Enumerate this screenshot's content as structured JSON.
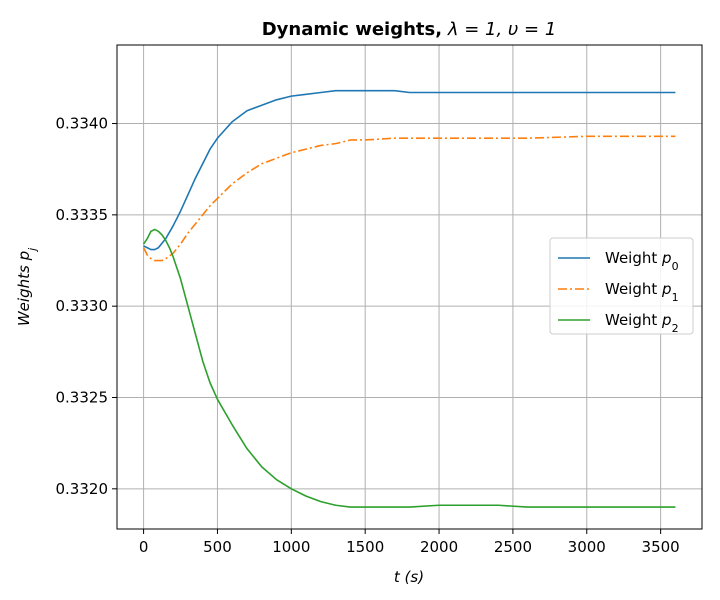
{
  "chart_data": {
    "type": "line",
    "title_bold": "Dynamic weights,",
    "title_math": " λ = 1, υ = 1",
    "xlabel": "t (s)",
    "ylabel": "Weights p",
    "ylabel_sub": "j",
    "xlim": [
      -180,
      3780
    ],
    "ylim": [
      0.33178,
      0.33443
    ],
    "xticks": [
      0,
      500,
      1000,
      1500,
      2000,
      2500,
      3000,
      3500
    ],
    "xtick_labels": [
      "0",
      "500",
      "1000",
      "1500",
      "2000",
      "2500",
      "3000",
      "3500"
    ],
    "yticks": [
      0.332,
      0.3325,
      0.333,
      0.3335,
      0.334
    ],
    "ytick_labels": [
      "0.3320",
      "0.3325",
      "0.3330",
      "0.3335",
      "0.3340"
    ],
    "grid": true,
    "legend_position": "center-right",
    "series": [
      {
        "name": "Weight p",
        "name_sub": "0",
        "color": "#1f77b4",
        "dash": "solid",
        "x": [
          0,
          25,
          50,
          75,
          100,
          150,
          200,
          250,
          300,
          350,
          400,
          450,
          500,
          600,
          700,
          800,
          900,
          1000,
          1100,
          1200,
          1300,
          1400,
          1500,
          1600,
          1700,
          1800,
          1900,
          2000,
          2200,
          2400,
          2600,
          2800,
          3000,
          3200,
          3400,
          3600
        ],
        "y": [
          0.33333,
          0.33332,
          0.33331,
          0.33331,
          0.33332,
          0.33337,
          0.33344,
          0.33352,
          0.33361,
          0.3337,
          0.33378,
          0.33386,
          0.33392,
          0.33401,
          0.33407,
          0.3341,
          0.33413,
          0.33415,
          0.33416,
          0.33417,
          0.33418,
          0.33418,
          0.33418,
          0.33418,
          0.33418,
          0.33417,
          0.33417,
          0.33417,
          0.33417,
          0.33417,
          0.33417,
          0.33417,
          0.33417,
          0.33417,
          0.33417,
          0.33417
        ]
      },
      {
        "name": "Weight p",
        "name_sub": "1",
        "color": "#ff7f0e",
        "dash": "dashdot",
        "x": [
          0,
          25,
          50,
          75,
          100,
          125,
          150,
          200,
          250,
          300,
          350,
          400,
          450,
          500,
          600,
          700,
          800,
          900,
          1000,
          1100,
          1200,
          1300,
          1400,
          1500,
          1700,
          2000,
          2300,
          2600,
          3000,
          3300,
          3600
        ],
        "y": [
          0.33332,
          0.33328,
          0.33326,
          0.33325,
          0.33325,
          0.33325,
          0.33326,
          0.33329,
          0.33334,
          0.3334,
          0.33345,
          0.3335,
          0.33355,
          0.33359,
          0.33367,
          0.33373,
          0.33378,
          0.33381,
          0.33384,
          0.33386,
          0.33388,
          0.33389,
          0.33391,
          0.33391,
          0.33392,
          0.33392,
          0.33392,
          0.33392,
          0.33393,
          0.33393,
          0.33393
        ]
      },
      {
        "name": "Weight p",
        "name_sub": "2",
        "color": "#2ca02c",
        "dash": "solid",
        "x": [
          0,
          25,
          50,
          75,
          100,
          125,
          150,
          175,
          200,
          250,
          300,
          350,
          400,
          450,
          500,
          550,
          600,
          700,
          800,
          900,
          1000,
          1100,
          1200,
          1300,
          1400,
          1500,
          1600,
          1800,
          2000,
          2200,
          2400,
          2600,
          2800,
          3000,
          3200,
          3400,
          3600
        ],
        "y": [
          0.33334,
          0.33337,
          0.33341,
          0.33342,
          0.33341,
          0.33339,
          0.33336,
          0.33332,
          0.33327,
          0.33315,
          0.333,
          0.33285,
          0.3327,
          0.33258,
          0.33249,
          0.33242,
          0.33235,
          0.33222,
          0.33212,
          0.33205,
          0.332,
          0.33196,
          0.33193,
          0.33191,
          0.3319,
          0.3319,
          0.3319,
          0.3319,
          0.33191,
          0.33191,
          0.33191,
          0.3319,
          0.3319,
          0.3319,
          0.3319,
          0.3319,
          0.3319
        ]
      }
    ]
  }
}
